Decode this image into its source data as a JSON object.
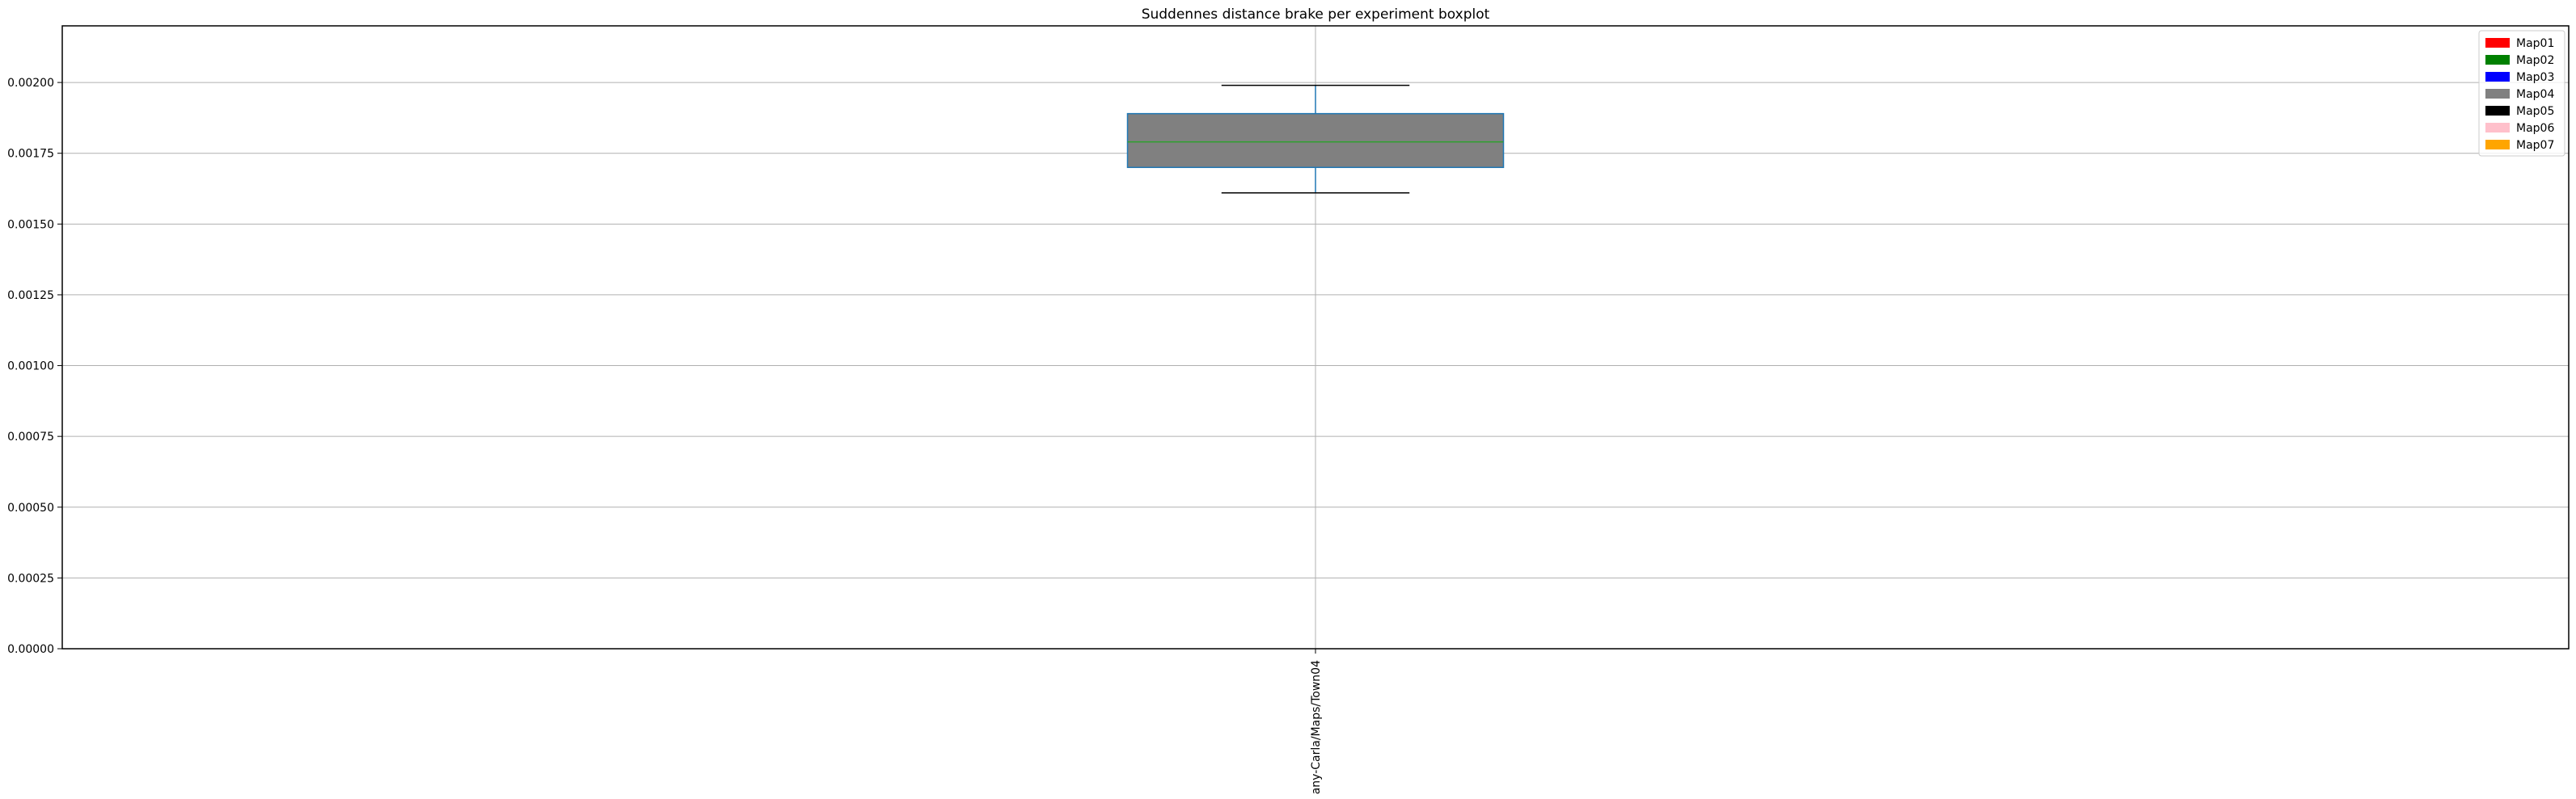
{
  "chart_data": {
    "type": "boxplot",
    "title": "Suddennes distance brake per experiment boxplot",
    "xlabel": "",
    "ylabel": "",
    "ylim": [
      0,
      0.0022
    ],
    "yticks": [
      0,
      0.00025,
      0.0005,
      0.00075,
      0.001,
      0.00125,
      0.0015,
      0.00175,
      0.002
    ],
    "ytick_labels": [
      "0.00000",
      "0.00025",
      "0.00050",
      "0.00075",
      "0.00100",
      "0.00125",
      "0.00150",
      "0.00175",
      "0.00200"
    ],
    "grid": true,
    "legend_position": "top-right",
    "categories": [
      "any-Carla/Maps/Town04"
    ],
    "boxes": [
      {
        "category": "any-Carla/Maps/Town04",
        "whisker_low": 0.00161,
        "q1": 0.0017,
        "median": 0.00179,
        "q3": 0.00189,
        "whisker_high": 0.00199,
        "fill": "#808080"
      }
    ],
    "legend": [
      {
        "name": "Map01",
        "color": "#ff0000"
      },
      {
        "name": "Map02",
        "color": "#008000"
      },
      {
        "name": "Map03",
        "color": "#0000ff"
      },
      {
        "name": "Map04",
        "color": "#808080"
      },
      {
        "name": "Map05",
        "color": "#000000"
      },
      {
        "name": "Map06",
        "color": "#ffc0cb"
      },
      {
        "name": "Map07",
        "color": "#ffa500"
      }
    ],
    "colors": {
      "box_edge": "#1f77b4",
      "median": "#2ca02c",
      "whisker": "#1f77b4",
      "cap": "#000000",
      "grid": "#b0b0b0"
    }
  }
}
